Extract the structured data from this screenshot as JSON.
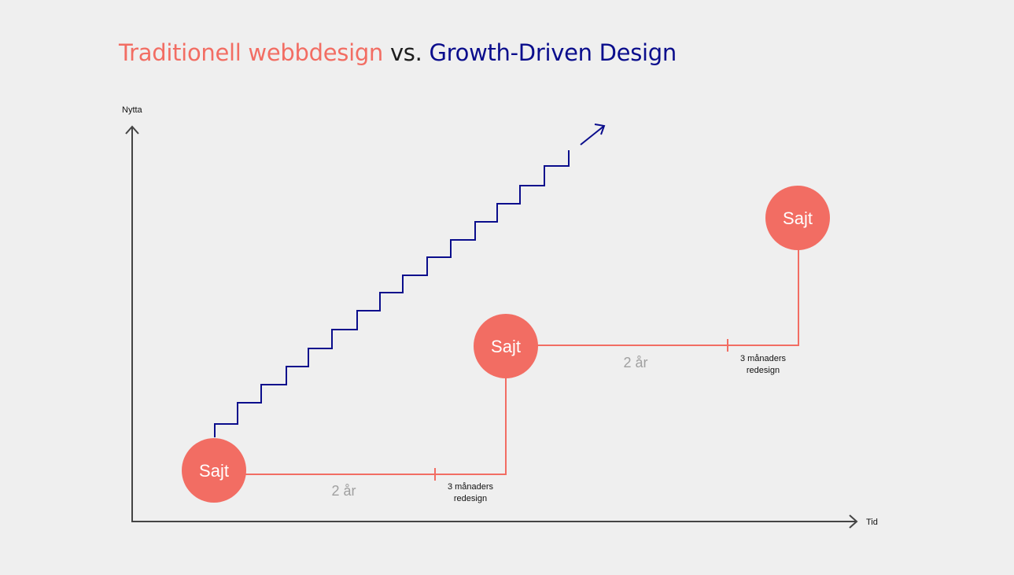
{
  "title": {
    "part1": "Traditionell webbdesign",
    "part2": " vs. ",
    "part3": "Growth-Driven Design"
  },
  "axes": {
    "y_label": "Nytta",
    "x_label": "Tid"
  },
  "traditional": {
    "nodes": [
      "Sajt",
      "Sajt",
      "Sajt"
    ],
    "durations": [
      "2 år",
      "2 år"
    ],
    "redesign_line1": [
      "3 månaders",
      "3 månaders"
    ],
    "redesign_line2": [
      "redesign",
      "redesign"
    ]
  },
  "colors": {
    "traditional": "#f26d63",
    "growth_driven": "#0a0d8c",
    "axis": "#444444",
    "background": "#efefef"
  }
}
